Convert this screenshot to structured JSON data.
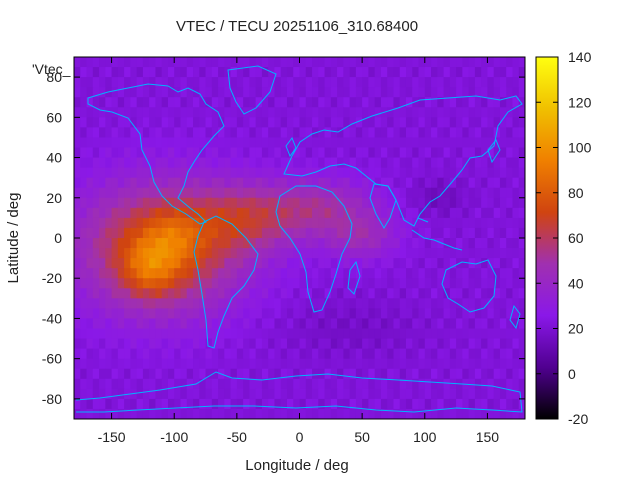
{
  "chart_data": {
    "type": "heatmap",
    "title": "VTEC / TECU 20251106_310.68400",
    "xlabel": "Longitude / deg",
    "ylabel": "Latitude / deg",
    "xlim": [
      -180,
      180
    ],
    "ylim": [
      -90,
      90
    ],
    "x_ticks": [
      -150,
      -100,
      -50,
      0,
      50,
      100,
      150
    ],
    "y_ticks": [
      -80,
      -60,
      -40,
      -20,
      0,
      20,
      40,
      60,
      80
    ],
    "colorbar": {
      "range": [
        -20,
        140
      ],
      "ticks": [
        -20,
        0,
        20,
        40,
        60,
        80,
        100,
        120,
        140
      ],
      "colormap": [
        "#000000",
        "#500090",
        "#8a18e8",
        "#a030b0",
        "#d04410",
        "#f08000",
        "#f0c000",
        "#ffff10"
      ]
    },
    "series_label": "'Vtec_",
    "background_value": 22,
    "blobs": [
      {
        "lon": -110,
        "lat": -5,
        "sigma_lon": 45,
        "sigma_lat": 22,
        "amp": 55
      },
      {
        "lon": -120,
        "lat": -15,
        "sigma_lon": 15,
        "sigma_lat": 10,
        "amp": 25
      },
      {
        "lon": -100,
        "lat": 0,
        "sigma_lon": 15,
        "sigma_lat": 10,
        "amp": 15
      },
      {
        "lon": -40,
        "lat": 10,
        "sigma_lon": 30,
        "sigma_lat": 12,
        "amp": 30
      },
      {
        "lon": 20,
        "lat": 15,
        "sigma_lon": 30,
        "sigma_lat": 10,
        "amp": 25
      },
      {
        "lon": 50,
        "lat": 0,
        "sigma_lon": 20,
        "sigma_lat": 8,
        "amp": 20
      },
      {
        "lon": 110,
        "lat": 20,
        "sigma_lon": 15,
        "sigma_lat": 6,
        "amp": -8
      },
      {
        "lon": 40,
        "lat": -45,
        "sigma_lon": 40,
        "sigma_lat": 10,
        "amp": -5
      }
    ]
  }
}
